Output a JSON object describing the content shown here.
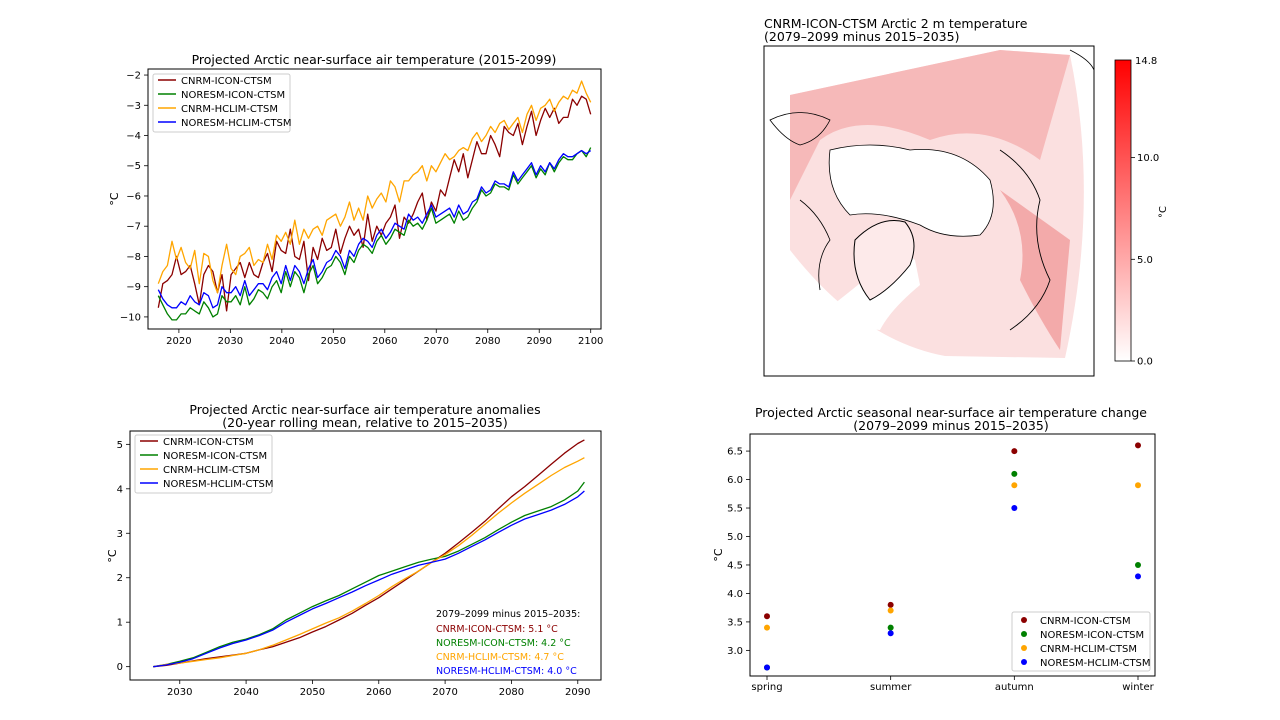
{
  "colors": {
    "cnrm_icon": "#8b0000",
    "noresm_icon": "#008000",
    "cnrm_hclim": "#ffa500",
    "noresm_hclim": "#0000ff"
  },
  "chart_data": [
    {
      "id": "timeseries",
      "type": "line",
      "title": "Projected Arctic near-surface air temperature (2015-2099)",
      "xlabel": "",
      "ylabel": "°C",
      "xlim": [
        2014,
        2102
      ],
      "ylim": [
        -10.4,
        -1.8
      ],
      "xticks": [
        2020,
        2030,
        2040,
        2050,
        2060,
        2070,
        2080,
        2090,
        2100
      ],
      "yticks": [
        -10,
        -9,
        -8,
        -7,
        -6,
        -5,
        -4,
        -3,
        -2
      ],
      "legend_position": "upper-left",
      "x_start": 2016,
      "series": [
        {
          "name": "CNRM-ICON-CTSM",
          "color_key": "cnrm_icon",
          "values": [
            -9.7,
            -8.9,
            -8.8,
            -8.6,
            -8.0,
            -8.6,
            -8.5,
            -8.3,
            -8.9,
            -9.6,
            -8.6,
            -8.3,
            -8.5,
            -9.2,
            -8.6,
            -9.8,
            -8.6,
            -8.4,
            -8.2,
            -8.7,
            -8.2,
            -8.6,
            -8.7,
            -8.2,
            -7.9,
            -8.5,
            -7.5,
            -7.8,
            -7.9,
            -7.1,
            -8.0,
            -8.1,
            -7.5,
            -8.8,
            -7.7,
            -8.1,
            -7.4,
            -7.8,
            -7.7,
            -7.1,
            -7.9,
            -7.4,
            -7.0,
            -7.3,
            -7.1,
            -7.7,
            -6.6,
            -7.5,
            -7.0,
            -7.3,
            -6.9,
            -6.7,
            -6.3,
            -7.4,
            -6.7,
            -6.9,
            -6.6,
            -6.2,
            -5.9,
            -6.8,
            -6.2,
            -6.5,
            -5.8,
            -6.0,
            -5.4,
            -4.8,
            -5.2,
            -4.6,
            -5.4,
            -4.8,
            -4.2,
            -4.6,
            -4.6,
            -4.0,
            -4.3,
            -4.7,
            -3.7,
            -3.9,
            -4.0,
            -3.6,
            -4.3,
            -3.7,
            -3.2,
            -4.0,
            -3.5,
            -3.1,
            -3.4,
            -3.1,
            -3.6,
            -3.4,
            -3.4,
            -2.8,
            -3.0,
            -2.7,
            -2.8,
            -3.3
          ]
        },
        {
          "name": "NORESM-ICON-CTSM",
          "color_key": "noresm_icon",
          "values": [
            -9.3,
            -9.6,
            -9.9,
            -10.1,
            -10.1,
            -9.9,
            -9.9,
            -9.7,
            -9.8,
            -9.9,
            -9.5,
            -9.7,
            -10.0,
            -9.9,
            -9.3,
            -9.5,
            -9.5,
            -9.3,
            -9.6,
            -9.0,
            -9.6,
            -9.4,
            -9.1,
            -9.2,
            -9.4,
            -9.0,
            -8.8,
            -9.2,
            -8.5,
            -9.0,
            -8.5,
            -8.7,
            -9.2,
            -8.6,
            -8.3,
            -8.9,
            -8.7,
            -8.4,
            -8.3,
            -8.0,
            -8.2,
            -8.6,
            -8.0,
            -8.2,
            -7.8,
            -7.6,
            -7.7,
            -7.9,
            -7.5,
            -7.3,
            -7.6,
            -7.4,
            -7.1,
            -7.2,
            -7.3,
            -6.8,
            -7.0,
            -6.9,
            -7.1,
            -6.8,
            -6.4,
            -6.9,
            -6.8,
            -6.7,
            -6.6,
            -6.9,
            -6.5,
            -6.8,
            -6.7,
            -6.4,
            -6.2,
            -5.8,
            -6.0,
            -5.9,
            -5.6,
            -5.7,
            -5.7,
            -5.8,
            -5.3,
            -5.6,
            -5.4,
            -5.2,
            -5.0,
            -5.4,
            -5.1,
            -5.3,
            -4.9,
            -5.2,
            -4.9,
            -4.7,
            -4.8,
            -4.8,
            -4.6,
            -4.5,
            -4.7,
            -4.4
          ]
        },
        {
          "name": "CNRM-HCLIM-CTSM",
          "color_key": "cnrm_hclim",
          "values": [
            -8.9,
            -8.5,
            -8.3,
            -7.5,
            -8.1,
            -7.7,
            -8.2,
            -8.4,
            -7.8,
            -8.9,
            -7.9,
            -8.0,
            -8.8,
            -9.2,
            -8.3,
            -7.6,
            -8.4,
            -8.6,
            -8.0,
            -7.9,
            -7.7,
            -8.3,
            -8.1,
            -8.2,
            -7.6,
            -8.1,
            -7.3,
            -7.5,
            -7.2,
            -7.6,
            -6.8,
            -7.6,
            -7.1,
            -7.4,
            -7.1,
            -7.0,
            -7.3,
            -6.8,
            -6.7,
            -6.6,
            -7.0,
            -6.7,
            -6.2,
            -6.8,
            -6.4,
            -6.8,
            -6.0,
            -6.4,
            -6.1,
            -5.9,
            -6.2,
            -5.5,
            -5.7,
            -6.2,
            -5.5,
            -5.5,
            -5.3,
            -5.2,
            -5.0,
            -5.5,
            -5.0,
            -5.2,
            -4.9,
            -4.6,
            -4.8,
            -4.7,
            -4.5,
            -4.4,
            -4.5,
            -4.1,
            -3.9,
            -4.2,
            -4.0,
            -3.7,
            -3.9,
            -3.6,
            -3.5,
            -3.8,
            -3.6,
            -3.4,
            -3.9,
            -3.3,
            -3.0,
            -3.5,
            -3.1,
            -3.0,
            -2.8,
            -3.2,
            -2.9,
            -2.7,
            -2.8,
            -2.5,
            -2.6,
            -2.2,
            -2.6,
            -2.9
          ]
        },
        {
          "name": "NORESM-HCLIM-CTSM",
          "color_key": "noresm_hclim",
          "values": [
            -9.1,
            -9.4,
            -9.6,
            -9.7,
            -9.7,
            -9.5,
            -9.6,
            -9.3,
            -9.5,
            -9.6,
            -9.2,
            -9.3,
            -9.7,
            -9.6,
            -9.0,
            -9.2,
            -9.2,
            -9.0,
            -9.3,
            -8.8,
            -9.3,
            -9.1,
            -8.9,
            -8.9,
            -9.1,
            -8.7,
            -8.5,
            -8.9,
            -8.3,
            -8.8,
            -8.3,
            -8.5,
            -8.9,
            -8.4,
            -8.1,
            -8.7,
            -8.5,
            -8.2,
            -8.1,
            -7.8,
            -8.0,
            -8.4,
            -7.8,
            -8.0,
            -7.6,
            -7.4,
            -7.5,
            -7.7,
            -7.3,
            -7.1,
            -7.4,
            -7.2,
            -6.9,
            -7.0,
            -7.1,
            -6.6,
            -6.8,
            -6.7,
            -6.9,
            -6.6,
            -6.3,
            -6.7,
            -6.6,
            -6.5,
            -6.4,
            -6.7,
            -6.3,
            -6.6,
            -6.5,
            -6.2,
            -6.1,
            -5.7,
            -5.9,
            -5.8,
            -5.5,
            -5.6,
            -5.6,
            -5.7,
            -5.2,
            -5.5,
            -5.3,
            -5.1,
            -4.9,
            -5.3,
            -5.0,
            -5.2,
            -4.9,
            -5.1,
            -4.8,
            -4.6,
            -4.7,
            -4.7,
            -4.6,
            -4.5,
            -4.6,
            -4.5
          ]
        }
      ]
    },
    {
      "id": "map",
      "type": "heatmap",
      "title_line1": "CNRM-ICON-CTSM Arctic 2 m temperature",
      "title_line2": "(2079–2099 minus 2015–2035)",
      "colorbar_label": "°C",
      "colorbar_range": [
        0.0,
        14.8
      ],
      "colorbar_ticks": [
        "0.0",
        "5.0",
        "10.0"
      ],
      "colorbar_max_label": "14.8",
      "colorbar_ticks_values": [
        0.0,
        5.0,
        10.0
      ],
      "colormap": [
        "#ffffff",
        "#ff0000"
      ]
    },
    {
      "id": "anomalies",
      "type": "line",
      "title_line1": "Projected Arctic near-surface air temperature anomalies",
      "title_line2": "(20-year rolling mean, relative to 2015–2035)",
      "xlabel": "",
      "ylabel": "°C",
      "xlim": [
        2022.5,
        2093.5
      ],
      "ylim": [
        -0.3,
        5.3
      ],
      "xticks": [
        2030,
        2040,
        2050,
        2060,
        2070,
        2080,
        2090
      ],
      "yticks": [
        0,
        1,
        2,
        3,
        4,
        5
      ],
      "legend_position": "upper-left",
      "x": [
        2026,
        2028,
        2030,
        2032,
        2034,
        2036,
        2038,
        2040,
        2042,
        2044,
        2046,
        2048,
        2050,
        2052,
        2054,
        2056,
        2058,
        2060,
        2062,
        2064,
        2066,
        2068,
        2070,
        2072,
        2074,
        2076,
        2078,
        2080,
        2082,
        2084,
        2086,
        2088,
        2090,
        2091
      ],
      "series": [
        {
          "name": "CNRM-ICON-CTSM",
          "color_key": "cnrm_icon",
          "values": [
            0.0,
            0.03,
            0.08,
            0.13,
            0.18,
            0.22,
            0.26,
            0.3,
            0.38,
            0.45,
            0.55,
            0.65,
            0.78,
            0.9,
            1.05,
            1.2,
            1.38,
            1.55,
            1.75,
            1.95,
            2.15,
            2.35,
            2.55,
            2.78,
            3.02,
            3.27,
            3.55,
            3.82,
            4.05,
            4.3,
            4.55,
            4.8,
            5.02,
            5.1
          ]
        },
        {
          "name": "NORESM-ICON-CTSM",
          "color_key": "noresm_icon",
          "values": [
            0.0,
            0.05,
            0.12,
            0.2,
            0.32,
            0.45,
            0.55,
            0.62,
            0.72,
            0.85,
            1.05,
            1.2,
            1.35,
            1.48,
            1.6,
            1.75,
            1.9,
            2.05,
            2.15,
            2.25,
            2.35,
            2.42,
            2.48,
            2.6,
            2.75,
            2.9,
            3.08,
            3.25,
            3.4,
            3.5,
            3.6,
            3.75,
            3.95,
            4.15
          ]
        },
        {
          "name": "CNRM-HCLIM-CTSM",
          "color_key": "cnrm_hclim",
          "values": [
            0.0,
            0.05,
            0.08,
            0.12,
            0.16,
            0.2,
            0.25,
            0.3,
            0.38,
            0.48,
            0.6,
            0.72,
            0.85,
            0.98,
            1.1,
            1.25,
            1.42,
            1.6,
            1.8,
            1.98,
            2.15,
            2.35,
            2.52,
            2.72,
            2.95,
            3.2,
            3.45,
            3.68,
            3.9,
            4.1,
            4.3,
            4.48,
            4.62,
            4.7
          ]
        },
        {
          "name": "NORESM-HCLIM-CTSM",
          "color_key": "noresm_hclim",
          "values": [
            0.0,
            0.04,
            0.1,
            0.18,
            0.3,
            0.42,
            0.52,
            0.6,
            0.7,
            0.82,
            1.0,
            1.15,
            1.3,
            1.42,
            1.55,
            1.68,
            1.82,
            1.95,
            2.08,
            2.18,
            2.28,
            2.35,
            2.42,
            2.55,
            2.7,
            2.85,
            3.02,
            3.18,
            3.32,
            3.42,
            3.52,
            3.65,
            3.82,
            3.95
          ]
        }
      ],
      "annotation_title": "2079–2099 minus 2015–2035:",
      "annotations": [
        {
          "text": "CNRM-ICON-CTSM: 5.1 °C",
          "color_key": "cnrm_icon"
        },
        {
          "text": "NORESM-ICON-CTSM: 4.2 °C",
          "color_key": "noresm_icon"
        },
        {
          "text": "CNRM-HCLIM-CTSM: 4.7 °C",
          "color_key": "cnrm_hclim"
        },
        {
          "text": "NORESM-HCLIM-CTSM: 4.0 °C",
          "color_key": "noresm_hclim"
        }
      ]
    },
    {
      "id": "seasonal",
      "type": "scatter",
      "title_line1": "Projected Arctic seasonal near-surface air temperature change",
      "title_line2": "(2079–2099 minus 2015–2035)",
      "xlabel": "",
      "ylabel": "°C",
      "categories": [
        "spring",
        "summer",
        "autumn",
        "winter"
      ],
      "ylim": [
        2.55,
        6.8
      ],
      "yticks": [
        3.0,
        3.5,
        4.0,
        4.5,
        5.0,
        5.5,
        6.0,
        6.5
      ],
      "ytick_labels": [
        "3.0",
        "3.5",
        "4.0",
        "4.5",
        "5.0",
        "5.5",
        "6.0",
        "6.5"
      ],
      "legend_position": "lower-right",
      "series": [
        {
          "name": "CNRM-ICON-CTSM",
          "color_key": "cnrm_icon",
          "values": [
            3.6,
            3.8,
            6.5,
            6.6
          ]
        },
        {
          "name": "NORESM-ICON-CTSM",
          "color_key": "noresm_icon",
          "values": [
            2.7,
            3.4,
            6.1,
            4.5
          ]
        },
        {
          "name": "CNRM-HCLIM-CTSM",
          "color_key": "cnrm_hclim",
          "values": [
            3.4,
            3.7,
            5.9,
            5.9
          ]
        },
        {
          "name": "NORESM-HCLIM-CTSM",
          "color_key": "noresm_hclim",
          "values": [
            2.7,
            3.3,
            5.5,
            4.3
          ]
        }
      ]
    }
  ]
}
